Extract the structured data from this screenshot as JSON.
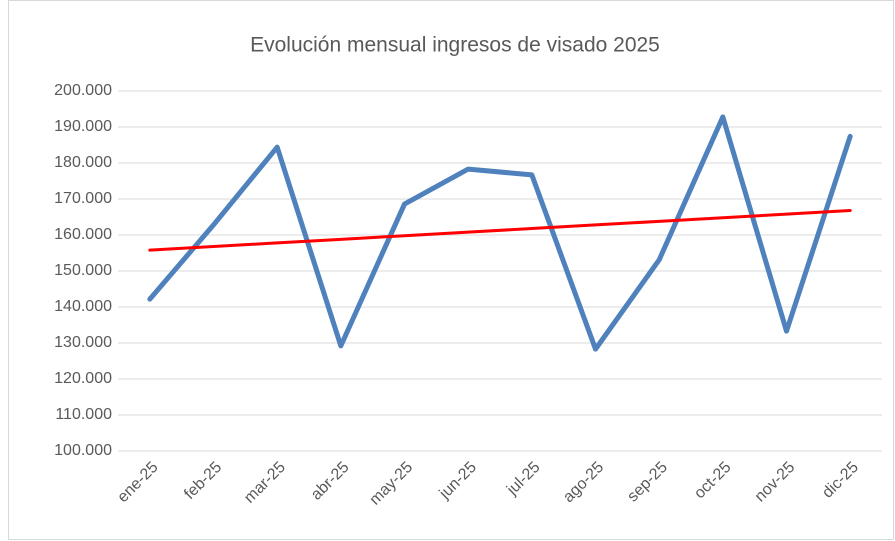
{
  "chart_data": {
    "type": "line",
    "title": "Evolución mensual ingresos de visado 2025",
    "categories": [
      "ene-25",
      "feb-25",
      "mar-25",
      "abr-25",
      "may-25",
      "jun-25",
      "jul-25",
      "ago-25",
      "sep-25",
      "oct-25",
      "nov-25",
      "dic-25"
    ],
    "series": [
      {
        "color": "#4f81bd",
        "values": [
          142200,
          162800,
          184400,
          129200,
          168600,
          178300,
          176700,
          128300,
          153100,
          192800,
          133300,
          187400
        ]
      },
      {
        "color": "#ff0000",
        "values": [
          155800,
          156800,
          157800,
          158800,
          159800,
          160800,
          161800,
          162800,
          163800,
          164800,
          165800,
          166800
        ]
      }
    ],
    "ylim": [
      100000,
      200000
    ],
    "yticks": [
      {
        "value": 100000,
        "label": "100.000"
      },
      {
        "value": 110000,
        "label": "110.000"
      },
      {
        "value": 120000,
        "label": "120.000"
      },
      {
        "value": 130000,
        "label": "130.000"
      },
      {
        "value": 140000,
        "label": "140.000"
      },
      {
        "value": 150000,
        "label": "150.000"
      },
      {
        "value": 160000,
        "label": "160.000"
      },
      {
        "value": 170000,
        "label": "170.000"
      },
      {
        "value": 180000,
        "label": "180.000"
      },
      {
        "value": 190000,
        "label": "190.000"
      },
      {
        "value": 200000,
        "label": "200.000"
      }
    ],
    "grid": true
  }
}
